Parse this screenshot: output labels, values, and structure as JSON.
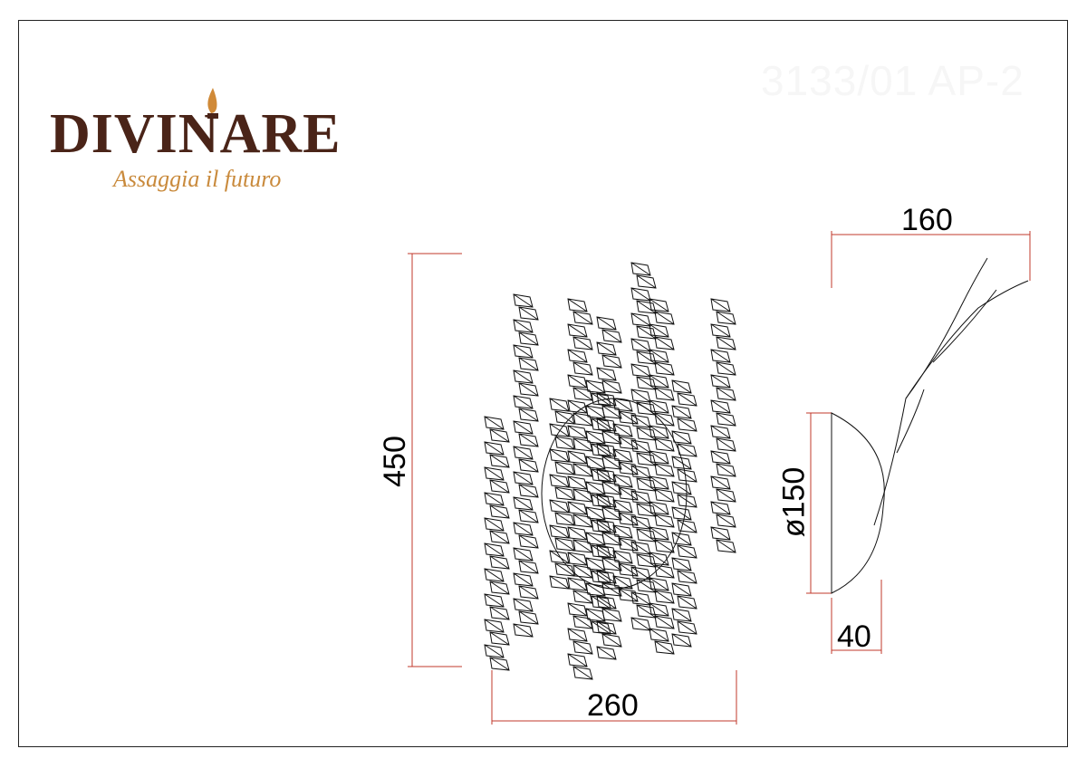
{
  "model_code": "3133/01 AP-2",
  "logo": {
    "brand": "DIVINARE",
    "tagline": "Assaggia il futuro"
  },
  "dimensions": {
    "height": "450",
    "width": "260",
    "depth": "160",
    "base_diameter": "ø150",
    "base_depth": "40"
  },
  "colors": {
    "dimension_line": "#c0392b",
    "drawing": "#111111",
    "brand": "#4a2418",
    "tagline": "#c98a3c"
  }
}
